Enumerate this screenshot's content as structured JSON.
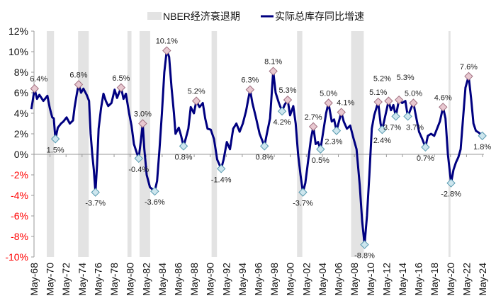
{
  "chart_data": {
    "type": "line",
    "title": "",
    "xlabel": "",
    "ylabel": "",
    "ylim": [
      -0.1,
      0.12
    ],
    "y_ticks": [
      "12%",
      "10%",
      "8%",
      "6%",
      "4%",
      "2%",
      "0%",
      "-2%",
      "-4%",
      "-6%",
      "-8%",
      "-10%"
    ],
    "y_tick_values": [
      12,
      10,
      8,
      6,
      4,
      2,
      0,
      -2,
      -4,
      -6,
      -8,
      -10
    ],
    "x_ticks": [
      "May-68",
      "May-70",
      "May-72",
      "May-74",
      "May-76",
      "May-78",
      "May-80",
      "May-82",
      "May-84",
      "May-86",
      "May-88",
      "May-90",
      "May-92",
      "May-94",
      "May-96",
      "May-98",
      "May-00",
      "May-02",
      "May-04",
      "May-06",
      "May-08",
      "May-10",
      "May-12",
      "May-14",
      "May-16",
      "May-18",
      "May-20",
      "May-22",
      "May-24"
    ],
    "grid": false,
    "legend": {
      "position": "top",
      "recession_label": "NBER经济衰退期",
      "series_label": "实际总库存同比增速"
    },
    "colors": {
      "line": "#000080",
      "recession": "#e3e3e3",
      "peak_marker": "#e8c8d0",
      "trough_marker": "#cde6ee",
      "negative_tick": "#ff0000"
    },
    "recessions": [
      [
        1969.92,
        1970.83
      ],
      [
        1973.83,
        1975.17
      ],
      [
        1980.0,
        1980.5
      ],
      [
        1981.5,
        1982.83
      ],
      [
        1990.5,
        1991.17
      ],
      [
        2001.17,
        2001.83
      ],
      [
        2007.92,
        2009.5
      ],
      [
        2020.08,
        2020.33
      ]
    ],
    "series": [
      {
        "name": "实际总库存同比增速",
        "points": [
          [
            1968.0,
            4.4
          ],
          [
            1968.4,
            6.4
          ],
          [
            1968.7,
            5.4
          ],
          [
            1969.0,
            5.8
          ],
          [
            1969.5,
            5.2
          ],
          [
            1970.0,
            5.7
          ],
          [
            1970.3,
            4.5
          ],
          [
            1970.6,
            3.6
          ],
          [
            1970.8,
            3.5
          ],
          [
            1971.0,
            1.5
          ],
          [
            1971.3,
            2.6
          ],
          [
            1971.7,
            3.0
          ],
          [
            1972.0,
            3.2
          ],
          [
            1972.4,
            3.6
          ],
          [
            1972.8,
            3.0
          ],
          [
            1973.2,
            3.3
          ],
          [
            1973.4,
            4.6
          ],
          [
            1973.7,
            6.0
          ],
          [
            1973.9,
            6.8
          ],
          [
            1974.2,
            6.0
          ],
          [
            1974.5,
            6.4
          ],
          [
            1974.9,
            5.8
          ],
          [
            1975.2,
            5.2
          ],
          [
            1975.4,
            2.0
          ],
          [
            1975.6,
            0.0
          ],
          [
            1975.8,
            -1.5
          ],
          [
            1976.0,
            -3.7
          ],
          [
            1976.2,
            -1.0
          ],
          [
            1976.4,
            2.5
          ],
          [
            1976.7,
            4.5
          ],
          [
            1977.0,
            5.9
          ],
          [
            1977.3,
            5.2
          ],
          [
            1977.6,
            4.7
          ],
          [
            1978.0,
            5.0
          ],
          [
            1978.4,
            6.3
          ],
          [
            1978.7,
            5.5
          ],
          [
            1979.2,
            6.5
          ],
          [
            1979.5,
            5.4
          ],
          [
            1979.8,
            5.9
          ],
          [
            1980.2,
            4.0
          ],
          [
            1980.5,
            2.8
          ],
          [
            1980.8,
            1.0
          ],
          [
            1981.1,
            0.3
          ],
          [
            1981.4,
            -0.4
          ],
          [
            1981.7,
            1.5
          ],
          [
            1981.9,
            3.0
          ],
          [
            1982.1,
            0.5
          ],
          [
            1982.4,
            -2.0
          ],
          [
            1982.8,
            -3.2
          ],
          [
            1983.4,
            -3.6
          ],
          [
            1983.7,
            -2.6
          ],
          [
            1984.0,
            0.5
          ],
          [
            1984.3,
            4.0
          ],
          [
            1984.6,
            8.0
          ],
          [
            1984.9,
            10.1
          ],
          [
            1985.2,
            9.5
          ],
          [
            1985.5,
            6.5
          ],
          [
            1985.8,
            4.0
          ],
          [
            1986.0,
            2.0
          ],
          [
            1986.4,
            2.6
          ],
          [
            1986.7,
            1.8
          ],
          [
            1987.0,
            0.8
          ],
          [
            1987.3,
            1.6
          ],
          [
            1987.6,
            2.5
          ],
          [
            1987.9,
            4.6
          ],
          [
            1988.3,
            4.0
          ],
          [
            1988.6,
            5.2
          ],
          [
            1989.0,
            4.6
          ],
          [
            1989.4,
            5.0
          ],
          [
            1989.7,
            3.5
          ],
          [
            1990.0,
            2.5
          ],
          [
            1990.4,
            2.4
          ],
          [
            1990.8,
            1.5
          ],
          [
            1991.2,
            -0.5
          ],
          [
            1991.7,
            -1.4
          ],
          [
            1992.0,
            -0.5
          ],
          [
            1992.4,
            1.2
          ],
          [
            1992.8,
            0.5
          ],
          [
            1993.2,
            2.5
          ],
          [
            1993.6,
            3.0
          ],
          [
            1994.0,
            2.2
          ],
          [
            1994.4,
            3.0
          ],
          [
            1994.8,
            4.2
          ],
          [
            1995.3,
            6.3
          ],
          [
            1995.6,
            5.0
          ],
          [
            1996.0,
            3.7
          ],
          [
            1996.5,
            2.0
          ],
          [
            1996.9,
            1.2
          ],
          [
            1997.1,
            0.8
          ],
          [
            1997.4,
            2.0
          ],
          [
            1997.8,
            3.5
          ],
          [
            1998.2,
            8.1
          ],
          [
            1998.5,
            6.0
          ],
          [
            1998.9,
            5.0
          ],
          [
            1999.3,
            4.2
          ],
          [
            1999.6,
            4.8
          ],
          [
            2000.0,
            5.3
          ],
          [
            2000.3,
            3.8
          ],
          [
            2000.7,
            4.7
          ],
          [
            2001.0,
            3.0
          ],
          [
            2001.3,
            0.0
          ],
          [
            2001.6,
            -2.0
          ],
          [
            2001.9,
            -3.7
          ],
          [
            2002.2,
            -2.8
          ],
          [
            2002.5,
            -1.0
          ],
          [
            2002.9,
            1.5
          ],
          [
            2003.2,
            2.7
          ],
          [
            2003.5,
            1.0
          ],
          [
            2003.8,
            1.2
          ],
          [
            2004.1,
            0.5
          ],
          [
            2004.4,
            2.0
          ],
          [
            2004.8,
            4.0
          ],
          [
            2005.1,
            5.0
          ],
          [
            2005.5,
            3.2
          ],
          [
            2005.8,
            3.4
          ],
          [
            2006.1,
            2.3
          ],
          [
            2006.5,
            3.5
          ],
          [
            2006.7,
            4.1
          ],
          [
            2007.0,
            3.2
          ],
          [
            2007.4,
            2.5
          ],
          [
            2007.8,
            2.8
          ],
          [
            2008.2,
            1.6
          ],
          [
            2008.6,
            0.5
          ],
          [
            2009.0,
            -3.0
          ],
          [
            2009.3,
            -6.5
          ],
          [
            2009.6,
            -8.8
          ],
          [
            2009.9,
            -6.0
          ],
          [
            2010.2,
            -2.0
          ],
          [
            2010.5,
            2.5
          ],
          [
            2010.8,
            3.8
          ],
          [
            2011.3,
            5.1
          ],
          [
            2011.6,
            3.0
          ],
          [
            2011.8,
            2.4
          ],
          [
            2012.2,
            3.8
          ],
          [
            2012.6,
            5.2
          ],
          [
            2012.9,
            4.3
          ],
          [
            2013.2,
            4.8
          ],
          [
            2013.5,
            3.7
          ],
          [
            2013.9,
            5.3
          ],
          [
            2014.3,
            5.0
          ],
          [
            2014.7,
            5.2
          ],
          [
            2015.0,
            3.7
          ],
          [
            2015.4,
            4.5
          ],
          [
            2015.7,
            5.0
          ],
          [
            2016.0,
            3.8
          ],
          [
            2016.4,
            2.2
          ],
          [
            2016.8,
            1.5
          ],
          [
            2017.2,
            0.7
          ],
          [
            2017.5,
            1.8
          ],
          [
            2017.9,
            2.0
          ],
          [
            2018.3,
            1.8
          ],
          [
            2018.7,
            2.6
          ],
          [
            2019.0,
            3.2
          ],
          [
            2019.4,
            4.6
          ],
          [
            2019.7,
            3.5
          ],
          [
            2020.0,
            0.0
          ],
          [
            2020.4,
            -2.8
          ],
          [
            2020.7,
            -1.5
          ],
          [
            2021.0,
            -0.8
          ],
          [
            2021.3,
            -0.3
          ],
          [
            2021.6,
            0.5
          ],
          [
            2021.9,
            3.5
          ],
          [
            2022.2,
            6.5
          ],
          [
            2022.6,
            7.6
          ],
          [
            2022.9,
            5.5
          ],
          [
            2023.2,
            3.0
          ],
          [
            2023.5,
            2.3
          ],
          [
            2023.9,
            2.1
          ],
          [
            2024.3,
            1.8
          ]
        ]
      }
    ],
    "annotations": [
      {
        "x": 1968.4,
        "y": 6.4,
        "label": "6.4%",
        "kind": "peak"
      },
      {
        "x": 1971.0,
        "y": 1.5,
        "label": "1.5%",
        "kind": "trough"
      },
      {
        "x": 1973.9,
        "y": 6.8,
        "label": "6.8%",
        "kind": "peak"
      },
      {
        "x": 1976.0,
        "y": -3.7,
        "label": "-3.7%",
        "kind": "trough"
      },
      {
        "x": 1979.2,
        "y": 6.5,
        "label": "6.5%",
        "kind": "peak"
      },
      {
        "x": 1981.4,
        "y": -0.4,
        "label": "-0.4%",
        "kind": "trough"
      },
      {
        "x": 1981.9,
        "y": 3.0,
        "label": "3.0%",
        "kind": "peak"
      },
      {
        "x": 1983.4,
        "y": -3.6,
        "label": "-3.6%",
        "kind": "trough"
      },
      {
        "x": 1984.9,
        "y": 10.1,
        "label": "10.1%",
        "kind": "peak"
      },
      {
        "x": 1987.0,
        "y": 0.8,
        "label": "0.8%",
        "kind": "trough"
      },
      {
        "x": 1988.6,
        "y": 5.2,
        "label": "5.2%",
        "kind": "peak"
      },
      {
        "x": 1991.7,
        "y": -1.4,
        "label": "-1.4%",
        "kind": "trough"
      },
      {
        "x": 1995.3,
        "y": 6.3,
        "label": "6.3%",
        "kind": "peak"
      },
      {
        "x": 1997.1,
        "y": 0.8,
        "label": "0.8%",
        "kind": "trough"
      },
      {
        "x": 1998.2,
        "y": 8.1,
        "label": "8.1%",
        "kind": "peak"
      },
      {
        "x": 1999.3,
        "y": 4.2,
        "label": "4.2%",
        "kind": "trough"
      },
      {
        "x": 2000.0,
        "y": 5.3,
        "label": "5.3%",
        "kind": "peak"
      },
      {
        "x": 2001.9,
        "y": -3.7,
        "label": "-3.7%",
        "kind": "trough"
      },
      {
        "x": 2003.2,
        "y": 2.7,
        "label": "2.7%",
        "kind": "peak"
      },
      {
        "x": 2004.1,
        "y": 0.5,
        "label": "0.5%",
        "kind": "trough"
      },
      {
        "x": 2005.1,
        "y": 5.0,
        "label": "5.0%",
        "kind": "peak"
      },
      {
        "x": 2006.1,
        "y": 2.3,
        "label": "2.3%",
        "kind": "trough"
      },
      {
        "x": 2006.7,
        "y": 4.1,
        "label": "4.1%",
        "kind": "peak"
      },
      {
        "x": 2009.6,
        "y": -8.8,
        "label": "-8.8%",
        "kind": "trough"
      },
      {
        "x": 2011.3,
        "y": 5.1,
        "label": "5.1%",
        "kind": "peak"
      },
      {
        "x": 2011.8,
        "y": 2.4,
        "label": "2.4%",
        "kind": "trough"
      },
      {
        "x": 2012.6,
        "y": 5.2,
        "label": "5.2%",
        "kind": "peak"
      },
      {
        "x": 2013.5,
        "y": 3.7,
        "label": "3.7%",
        "kind": "trough"
      },
      {
        "x": 2013.9,
        "y": 5.3,
        "label": "5.3%",
        "kind": "peak"
      },
      {
        "x": 2015.0,
        "y": 3.7,
        "label": "3.7%",
        "kind": "trough"
      },
      {
        "x": 2015.7,
        "y": 5.0,
        "label": "5.0%",
        "kind": "peak"
      },
      {
        "x": 2017.2,
        "y": 0.7,
        "label": "0.7%",
        "kind": "trough"
      },
      {
        "x": 2019.4,
        "y": 4.6,
        "label": "4.6%",
        "kind": "peak"
      },
      {
        "x": 2020.4,
        "y": -2.8,
        "label": "-2.8%",
        "kind": "trough"
      },
      {
        "x": 2022.6,
        "y": 7.6,
        "label": "7.6%",
        "kind": "peak"
      },
      {
        "x": 2024.3,
        "y": 1.8,
        "label": "1.8%",
        "kind": "trough"
      }
    ]
  }
}
